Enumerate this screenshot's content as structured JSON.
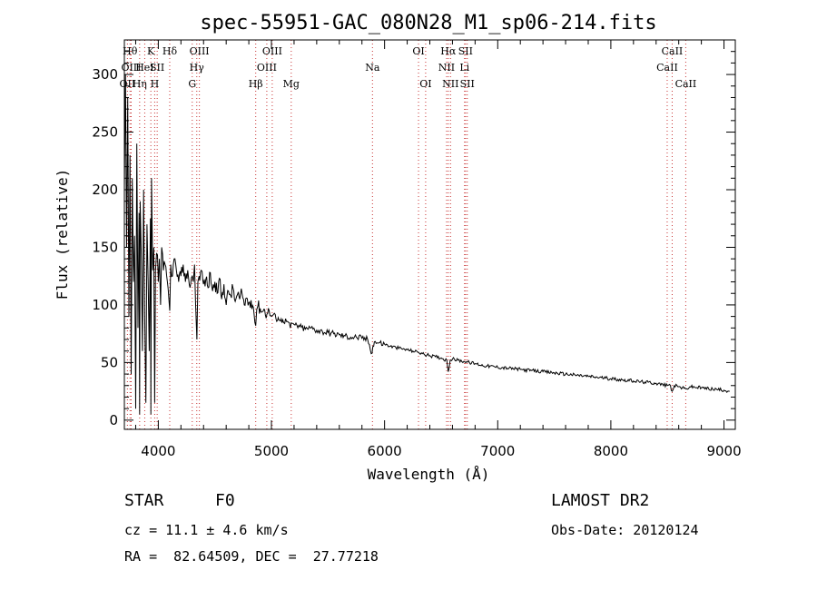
{
  "chart_data": {
    "type": "line",
    "title": "spec-55951-GAC_080N28_M1_sp06-214.fits",
    "xlabel": "Wavelength (Å)",
    "ylabel": "Flux (relative)",
    "xlim": [
      3700,
      9100
    ],
    "ylim": [
      -8,
      330
    ],
    "xticks": [
      4000,
      5000,
      6000,
      7000,
      8000,
      9000
    ],
    "yticks": [
      0,
      50,
      100,
      150,
      200,
      250,
      300
    ],
    "series": [
      {
        "name": "spectrum",
        "x": [
          3700,
          3710,
          3720,
          3730,
          3740,
          3750,
          3760,
          3770,
          3780,
          3790,
          3800,
          3810,
          3820,
          3830,
          3835,
          3840,
          3850,
          3860,
          3870,
          3880,
          3890,
          3900,
          3910,
          3920,
          3930,
          3934,
          3940,
          3950,
          3960,
          3968,
          3975,
          3985,
          4000,
          4010,
          4020,
          4030,
          4045,
          4060,
          4080,
          4101,
          4110,
          4125,
          4140,
          4160,
          4180,
          4200,
          4220,
          4240,
          4260,
          4280,
          4300,
          4310,
          4320,
          4330,
          4341,
          4350,
          4360,
          4380,
          4400,
          4420,
          4440,
          4460,
          4480,
          4500,
          4520,
          4540,
          4560,
          4580,
          4600,
          4620,
          4640,
          4660,
          4680,
          4700,
          4720,
          4740,
          4760,
          4780,
          4800,
          4820,
          4840,
          4861,
          4870,
          4880,
          4900,
          4920,
          4940,
          4960,
          4980,
          5000,
          5020,
          5040,
          5060,
          5080,
          5100,
          5150,
          5167,
          5183,
          5200,
          5250,
          5300,
          5350,
          5400,
          5450,
          5500,
          5550,
          5600,
          5650,
          5700,
          5750,
          5800,
          5850,
          5890,
          5896,
          5910,
          5950,
          6000,
          6050,
          6100,
          6150,
          6200,
          6250,
          6300,
          6350,
          6400,
          6450,
          6500,
          6550,
          6563,
          6580,
          6600,
          6650,
          6700,
          6750,
          6800,
          6900,
          7000,
          7100,
          7200,
          7300,
          7400,
          7500,
          7600,
          7700,
          7800,
          7900,
          8000,
          8100,
          8200,
          8300,
          8400,
          8498,
          8520,
          8542,
          8560,
          8600,
          8662,
          8700,
          8800,
          8900,
          9000,
          9050
        ],
        "values": [
          200,
          300,
          150,
          280,
          90,
          230,
          40,
          210,
          120,
          160,
          10,
          240,
          80,
          180,
          5,
          190,
          140,
          60,
          200,
          90,
          15,
          170,
          120,
          60,
          175,
          5,
          210,
          130,
          150,
          15,
          130,
          145,
          120,
          140,
          100,
          150,
          130,
          135,
          120,
          95,
          135,
          125,
          140,
          130,
          120,
          125,
          135,
          120,
          130,
          115,
          125,
          120,
          135,
          100,
          70,
          120,
          125,
          130,
          118,
          122,
          115,
          128,
          112,
          120,
          110,
          123,
          105,
          118,
          100,
          112,
          108,
          115,
          103,
          109,
          105,
          110,
          100,
          106,
          102,
          104,
          98,
          82,
          96,
          99,
          97,
          94,
          96,
          92,
          95,
          90,
          92,
          88,
          89,
          86,
          87,
          85,
          80,
          84,
          83,
          81,
          79,
          80,
          78,
          77,
          76,
          75,
          74,
          73,
          72,
          72,
          71,
          70,
          58,
          64,
          68,
          67,
          66,
          64,
          63,
          62,
          61,
          60,
          59,
          57,
          56,
          55,
          54,
          52,
          42,
          52,
          53,
          52,
          51,
          50,
          49,
          47,
          46,
          45,
          44,
          43,
          42,
          41,
          40,
          39,
          38,
          37,
          36,
          35,
          34,
          33,
          32,
          30,
          31,
          25,
          30,
          29,
          27,
          29,
          28,
          27,
          26,
          25
        ]
      }
    ],
    "lines": [
      {
        "x": 3727,
        "label": "OII",
        "row": 2
      },
      {
        "x": 3750,
        "label": "Hθ",
        "row": 0
      },
      {
        "x": 3760,
        "label": "OIII",
        "row": 1
      },
      {
        "x": 3835,
        "label": "Hη",
        "row": 2
      },
      {
        "x": 3880,
        "label": "HeI",
        "row": 1
      },
      {
        "x": 3934,
        "label": "K",
        "row": 0
      },
      {
        "x": 3968,
        "label": "H",
        "row": 2
      },
      {
        "x": 3990,
        "label": "SII",
        "row": 1
      },
      {
        "x": 4101,
        "label": "Hδ",
        "row": 0
      },
      {
        "x": 4300,
        "label": "G",
        "row": 2
      },
      {
        "x": 4340,
        "label": "Hγ",
        "row": 1
      },
      {
        "x": 4363,
        "label": "OIII",
        "row": 0
      },
      {
        "x": 4861,
        "label": "Hβ",
        "row": 2
      },
      {
        "x": 4959,
        "label": "OIII",
        "row": 1
      },
      {
        "x": 5007,
        "label": "OIII",
        "row": 0
      },
      {
        "x": 5175,
        "label": "Mg",
        "row": 2
      },
      {
        "x": 5893,
        "label": "Na",
        "row": 1
      },
      {
        "x": 6300,
        "label": "OI",
        "row": 0
      },
      {
        "x": 6363,
        "label": "OI",
        "row": 2
      },
      {
        "x": 6548,
        "label": "NII",
        "row": 1
      },
      {
        "x": 6563,
        "label": "Hα",
        "row": 0
      },
      {
        "x": 6583,
        "label": "NII",
        "row": 2
      },
      {
        "x": 6707,
        "label": "Li",
        "row": 1
      },
      {
        "x": 6716,
        "label": "SII",
        "row": 0
      },
      {
        "x": 6731,
        "label": "SII",
        "row": 2
      },
      {
        "x": 8498,
        "label": "CaII",
        "row": 1
      },
      {
        "x": 8542,
        "label": "CaII",
        "row": 0
      },
      {
        "x": 8662,
        "label": "CaII",
        "row": 2
      }
    ]
  },
  "info": {
    "object_class": "STAR",
    "subclass": "F0",
    "survey": "LAMOST DR2",
    "cz": "cz = 11.1 ± 4.6 km/s",
    "obs_date": "Obs-Date: 20120124",
    "coords": "RA =  82.64509, DEC =  27.77218"
  }
}
